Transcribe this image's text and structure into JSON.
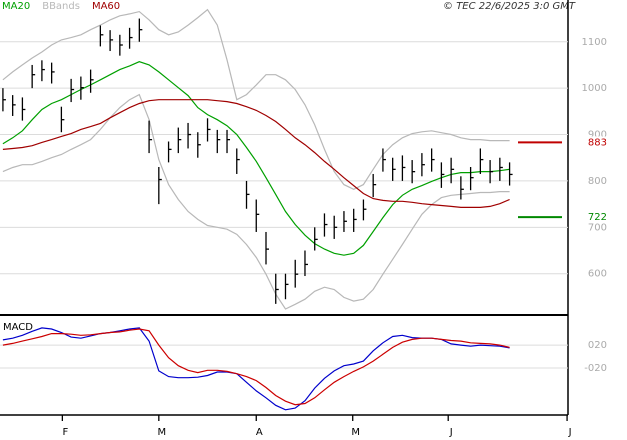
{
  "chart_data": [
    {
      "type": "ohlc",
      "source": "© TEC 22/6/2025 3:0 GMT",
      "x": [
        0,
        1,
        2,
        3,
        4,
        5,
        6,
        7,
        8,
        9,
        10,
        11,
        12,
        13,
        14,
        15,
        16,
        17,
        18,
        19,
        20,
        21,
        22,
        23,
        24,
        25,
        26,
        27,
        28,
        29,
        30,
        31,
        32,
        33,
        34,
        35,
        36,
        37,
        38,
        39,
        40,
        41,
        42,
        43,
        44,
        45,
        46,
        47,
        48,
        49,
        50,
        51,
        52
      ],
      "high": [
        1000,
        985,
        980,
        1050,
        1060,
        1055,
        960,
        1020,
        1025,
        1040,
        1135,
        1125,
        1115,
        1130,
        1150,
        930,
        830,
        885,
        915,
        925,
        905,
        935,
        910,
        910,
        870,
        800,
        760,
        690,
        600,
        600,
        630,
        650,
        700,
        730,
        725,
        735,
        740,
        760,
        815,
        870,
        850,
        855,
        845,
        860,
        870,
        840,
        850,
        810,
        830,
        870,
        845,
        850,
        840
      ],
      "low": [
        950,
        940,
        930,
        1000,
        1015,
        1010,
        905,
        970,
        975,
        990,
        1090,
        1080,
        1070,
        1085,
        1100,
        860,
        750,
        840,
        860,
        870,
        850,
        885,
        860,
        860,
        815,
        740,
        690,
        620,
        535,
        545,
        570,
        595,
        650,
        680,
        675,
        690,
        690,
        715,
        765,
        820,
        800,
        800,
        795,
        810,
        820,
        785,
        795,
        760,
        780,
        815,
        795,
        800,
        790
      ],
      "close": [
        975,
        964,
        954,
        1029,
        1040,
        1035,
        932,
        997,
        1001,
        1018,
        1115,
        1104,
        1093,
        1109,
        1126,
        889,
        803,
        868,
        889,
        900,
        878,
        911,
        889,
        889,
        846,
        771,
        728,
        653,
        566,
        577,
        599,
        620,
        674,
        706,
        700,
        713,
        717,
        739,
        792,
        846,
        825,
        829,
        820,
        835,
        846,
        814,
        825,
        782,
        807,
        846,
        820,
        829,
        814
      ],
      "color": "#000000",
      "series": [
        {
          "name": "MA20",
          "color": "#00a000",
          "values": [
            880,
            893,
            908,
            932,
            954,
            967,
            975,
            986,
            997,
            1007,
            1018,
            1029,
            1040,
            1048,
            1057,
            1050,
            1035,
            1018,
            1001,
            984,
            958,
            943,
            932,
            919,
            900,
            872,
            842,
            807,
            771,
            734,
            706,
            683,
            665,
            653,
            644,
            640,
            644,
            661,
            691,
            721,
            749,
            769,
            782,
            790,
            799,
            807,
            814,
            818,
            818,
            820,
            820,
            822,
            825
          ]
        },
        {
          "name": "BBands",
          "color": "#b8b8b8",
          "upper": [
            1018,
            1035,
            1050,
            1065,
            1078,
            1093,
            1104,
            1109,
            1115,
            1126,
            1136,
            1147,
            1156,
            1160,
            1165,
            1147,
            1126,
            1115,
            1121,
            1136,
            1152,
            1169,
            1136,
            1061,
            975,
            986,
            1007,
            1029,
            1029,
            1018,
            997,
            964,
            921,
            868,
            820,
            792,
            782,
            792,
            825,
            857,
            878,
            893,
            902,
            906,
            908,
            904,
            900,
            893,
            889,
            889,
            887,
            887,
            887
          ],
          "lower": [
            820,
            829,
            835,
            835,
            842,
            850,
            857,
            868,
            878,
            889,
            911,
            936,
            958,
            975,
            986,
            932,
            846,
            792,
            760,
            734,
            717,
            704,
            700,
            696,
            685,
            663,
            635,
            599,
            556,
            524,
            534,
            545,
            562,
            571,
            566,
            549,
            541,
            545,
            566,
            599,
            631,
            663,
            696,
            728,
            749,
            764,
            769,
            771,
            773,
            775,
            775,
            777,
            777
          ]
        },
        {
          "name": "MA60",
          "color": "#a00000",
          "values": [
            868,
            870,
            872,
            876,
            883,
            889,
            896,
            902,
            911,
            917,
            924,
            936,
            947,
            958,
            967,
            973,
            975,
            975,
            975,
            975,
            975,
            975,
            973,
            971,
            967,
            960,
            952,
            941,
            928,
            911,
            893,
            878,
            861,
            842,
            825,
            807,
            790,
            773,
            762,
            758,
            756,
            756,
            754,
            751,
            749,
            747,
            745,
            743,
            743,
            743,
            745,
            751,
            760
          ]
        }
      ],
      "xlim": [
        -0.3,
        58.2
      ],
      "ylim": [
        511,
        1190
      ],
      "yticks": [
        600,
        700,
        800,
        900,
        1000,
        1100
      ],
      "grid": true,
      "levels": [
        {
          "value": 883,
          "color": "#c00000"
        },
        {
          "value": 722,
          "color": "#008800"
        }
      ]
    },
    {
      "type": "line",
      "title": "MACD",
      "x": [
        0,
        1,
        2,
        3,
        4,
        5,
        6,
        7,
        8,
        9,
        10,
        11,
        12,
        13,
        14,
        15,
        16,
        17,
        18,
        19,
        20,
        21,
        22,
        23,
        24,
        25,
        26,
        27,
        28,
        29,
        30,
        31,
        32,
        33,
        34,
        35,
        36,
        37,
        38,
        39,
        40,
        41,
        42,
        43,
        44,
        45,
        46,
        47,
        48,
        49,
        50,
        51,
        52
      ],
      "series": [
        {
          "color": "#0000cc",
          "values": [
            29,
            32,
            37,
            44,
            50,
            48,
            42,
            34,
            32,
            36,
            40,
            42,
            45,
            48,
            50,
            27,
            -25,
            -35,
            -37,
            -37,
            -36,
            -33,
            -27,
            -27,
            -30,
            -45,
            -60,
            -72,
            -85,
            -93,
            -90,
            -77,
            -55,
            -38,
            -25,
            -16,
            -13,
            -8,
            10,
            24,
            35,
            37,
            33,
            32,
            32,
            30,
            22,
            20,
            18,
            20,
            19,
            18,
            15
          ]
        },
        {
          "color": "#cc0000",
          "values": [
            20,
            23,
            27,
            31,
            35,
            40,
            40,
            39,
            37,
            38,
            40,
            42,
            43,
            46,
            48,
            45,
            20,
            -2,
            -16,
            -24,
            -28,
            -24,
            -24,
            -26,
            -30,
            -35,
            -42,
            -54,
            -68,
            -78,
            -84,
            -82,
            -72,
            -58,
            -45,
            -35,
            -26,
            -18,
            -8,
            4,
            16,
            25,
            30,
            32,
            32,
            30,
            28,
            27,
            24,
            23,
            22,
            20,
            16
          ]
        }
      ],
      "xlim": [
        -0.3,
        58.2
      ],
      "ylim": [
        -102,
        69
      ],
      "yticks": [
        {
          "value": 20,
          "label": "020"
        },
        {
          "value": -20,
          "label": "-020"
        }
      ],
      "xticks": [
        {
          "value": 6.1,
          "label": "F"
        },
        {
          "value": 16.0,
          "label": "M"
        },
        {
          "value": 26.0,
          "label": "A"
        },
        {
          "value": 35.9,
          "label": "M"
        },
        {
          "value": 45.7,
          "label": "J"
        },
        {
          "value": 57.9,
          "label": "J"
        }
      ]
    }
  ]
}
